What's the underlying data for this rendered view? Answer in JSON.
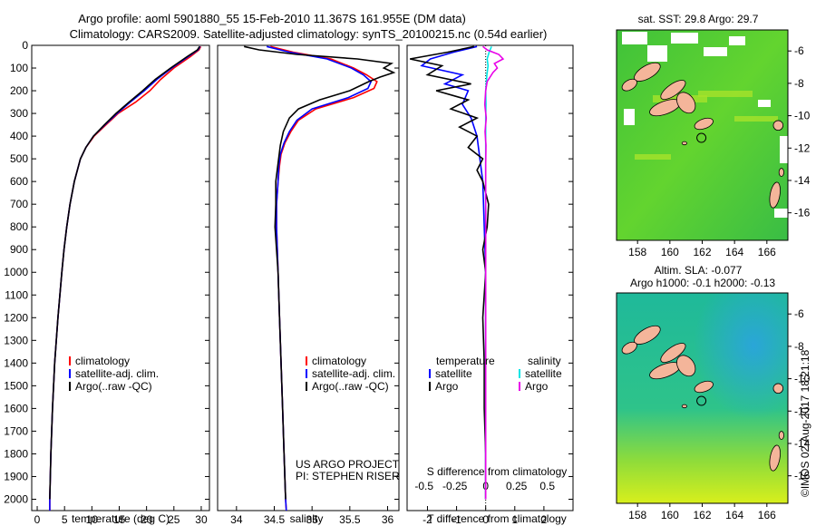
{
  "title": {
    "line1": "Argo profile: aoml 5901880_55 15-Feb-2010 11.367S 161.955E (DM data)",
    "line2": "Climatology: CARS2009. Satellite-adjusted climatology: synTS_20100215.nc (0.54d earlier)"
  },
  "colors": {
    "climatology": "#ff0000",
    "satellite": "#0000ff",
    "argo": "#000000",
    "sal_satellite": "#00e5e5",
    "sal_argo": "#e800e8"
  },
  "depth_axis": {
    "ticks": [
      0,
      100,
      200,
      300,
      400,
      500,
      600,
      700,
      800,
      900,
      1000,
      1100,
      1200,
      1300,
      1400,
      1500,
      1600,
      1700,
      1800,
      1900,
      2000
    ],
    "range": [
      0,
      2050
    ]
  },
  "chart_data": [
    {
      "type": "line",
      "xlabel": "temperature (deg C)",
      "xlim": [
        -1,
        31.5
      ],
      "xticks": [
        0,
        5,
        10,
        15,
        20,
        25,
        30
      ],
      "legend": {
        "labels": [
          "climatology",
          "satellite-adj. clim.",
          "Argo(..raw -QC)"
        ],
        "position": "lower-middle"
      },
      "series": [
        {
          "name": "climatology",
          "depth": [
            5,
            20,
            50,
            100,
            150,
            200,
            250,
            300,
            350,
            400,
            450,
            500,
            600,
            700,
            800,
            900,
            1000,
            1200,
            1400,
            1600,
            1800,
            2000,
            2050
          ],
          "values": [
            29.9,
            29.6,
            28.0,
            25.0,
            22.6,
            20.6,
            18.0,
            14.8,
            12.6,
            10.4,
            8.9,
            7.9,
            6.8,
            6.0,
            5.4,
            4.9,
            4.5,
            3.8,
            3.2,
            2.8,
            2.5,
            2.3,
            2.3
          ]
        },
        {
          "name": "satellite-adj. clim.",
          "depth": [
            5,
            20,
            50,
            100,
            150,
            200,
            250,
            300,
            350,
            400,
            450,
            500,
            600,
            700,
            800,
            900,
            1000,
            1200,
            1400,
            1600,
            1800,
            2000,
            2050
          ],
          "values": [
            29.8,
            29.4,
            27.6,
            24.6,
            21.9,
            19.6,
            17.0,
            14.6,
            12.4,
            10.3,
            8.9,
            7.9,
            6.8,
            6.0,
            5.4,
            4.9,
            4.5,
            3.8,
            3.2,
            2.8,
            2.5,
            2.3,
            2.3
          ]
        },
        {
          "name": "Argo(..raw -QC)",
          "depth": [
            5,
            20,
            50,
            100,
            150,
            200,
            250,
            300,
            350,
            400,
            450,
            500,
            600,
            700,
            800,
            900,
            1000,
            1200,
            1400,
            1600,
            1800,
            2000
          ],
          "values": [
            29.7,
            29.3,
            27.4,
            24.4,
            21.6,
            19.3,
            16.8,
            14.4,
            12.3,
            10.3,
            8.9,
            7.9,
            6.8,
            6.0,
            5.4,
            4.9,
            4.5,
            3.8,
            3.2,
            2.8,
            2.5,
            2.3
          ]
        }
      ]
    },
    {
      "type": "line",
      "xlabel": "salinity",
      "xlim": [
        33.75,
        36.15
      ],
      "xticks": [
        34,
        34.5,
        35,
        35.5,
        36
      ],
      "legend": {
        "labels": [
          "climatology",
          "satellite-adj. clim.",
          "Argo(..raw -QC)"
        ],
        "position": "lower-middle"
      },
      "annotation": [
        "US ARGO PROJECT",
        "PI: STEPHEN RISER"
      ],
      "series": [
        {
          "name": "climatology",
          "depth": [
            5,
            30,
            60,
            100,
            130,
            160,
            190,
            230,
            280,
            330,
            380,
            430,
            480,
            530,
            600,
            700,
            800,
            1000,
            1200,
            1400,
            1600,
            1800,
            2000,
            2050
          ],
          "values": [
            34.45,
            34.75,
            35.25,
            35.55,
            35.72,
            35.86,
            35.82,
            35.55,
            35.05,
            34.82,
            34.72,
            34.64,
            34.59,
            34.57,
            34.55,
            34.53,
            34.53,
            34.55,
            34.57,
            34.59,
            34.61,
            34.63,
            34.65,
            34.66
          ]
        },
        {
          "name": "satellite-adj. clim.",
          "depth": [
            5,
            30,
            60,
            100,
            130,
            160,
            190,
            230,
            280,
            330,
            380,
            430,
            480,
            530,
            600,
            700,
            800,
            1000,
            1200,
            1400,
            1600,
            1800,
            2000,
            2050
          ],
          "values": [
            34.4,
            34.7,
            35.2,
            35.52,
            35.68,
            35.78,
            35.74,
            35.48,
            35.0,
            34.8,
            34.7,
            34.63,
            34.58,
            34.56,
            34.55,
            34.53,
            34.53,
            34.55,
            34.57,
            34.59,
            34.61,
            34.63,
            34.65,
            34.66
          ]
        },
        {
          "name": "Argo(..raw -QC)",
          "depth": [
            5,
            20,
            40,
            60,
            80,
            100,
            120,
            140,
            160,
            200,
            240,
            280,
            320,
            380,
            440,
            520,
            600,
            700,
            800,
            900,
            1000,
            1200,
            1400,
            1600,
            1800,
            2000
          ],
          "values": [
            34.1,
            34.3,
            34.8,
            35.6,
            36.05,
            35.95,
            36.08,
            35.9,
            35.75,
            35.5,
            35.1,
            34.82,
            34.7,
            34.62,
            34.58,
            34.55,
            34.52,
            34.52,
            34.51,
            34.53,
            34.55,
            34.57,
            34.59,
            34.61,
            34.63,
            34.65
          ]
        }
      ]
    },
    {
      "type": "line",
      "xlabel": "T difference from climatology",
      "xlabel_top": "S difference from climatology",
      "xlim": [
        -2.7,
        3.0
      ],
      "xticks": [
        -2,
        -1,
        0,
        1,
        2
      ],
      "xticks_top": [
        -0.5,
        -0.25,
        0,
        0.25,
        0.5
      ],
      "legend": {
        "temperature_heading": "temperature",
        "salinity_heading": "salinity",
        "labels": [
          "satellite",
          "Argo",
          "satellite",
          "Argo"
        ]
      },
      "series": [
        {
          "name": "temperature satellite",
          "depth": [
            5,
            30,
            60,
            90,
            130,
            170,
            200,
            260,
            320,
            400,
            500,
            600,
            800,
            1000,
            1400,
            2000
          ],
          "values": [
            -0.3,
            -1.1,
            -1.9,
            -2.2,
            -0.8,
            -1.4,
            -0.6,
            -0.8,
            -0.5,
            -0.3,
            -0.2,
            -0.1,
            -0.05,
            0,
            0,
            0
          ]
        },
        {
          "name": "temperature Argo",
          "depth": [
            5,
            30,
            60,
            90,
            130,
            170,
            200,
            240,
            280,
            320,
            360,
            400,
            450,
            500,
            550,
            600,
            700,
            800,
            900,
            1000,
            1200,
            1400,
            1600,
            1800,
            2000
          ],
          "values": [
            -0.4,
            -1.3,
            -2.6,
            -1.5,
            -2.0,
            -0.5,
            -1.7,
            -0.6,
            -1.2,
            -0.3,
            -0.9,
            -0.3,
            -0.6,
            -0.1,
            -0.3,
            -0.1,
            0.1,
            0.05,
            -0.1,
            0.0,
            -0.1,
            -0.05,
            -0.05,
            0,
            0
          ]
        },
        {
          "name": "salinity satellite",
          "depth": [
            5,
            30,
            60,
            90,
            130,
            170,
            200,
            260,
            320,
            400,
            500,
            600,
            800,
            1000,
            1400,
            2000
          ],
          "values": [
            0.2,
            0.12,
            0.05,
            0.08,
            0.04,
            0.02,
            0.0,
            0.01,
            0.0,
            0.0,
            0.0,
            0.0,
            0.0,
            0.0,
            0.0,
            0.0
          ]
        },
        {
          "name": "salinity Argo",
          "depth": [
            5,
            20,
            40,
            60,
            80,
            100,
            120,
            140,
            160,
            200,
            260,
            320,
            380,
            440,
            520,
            600,
            800,
            1000,
            1400,
            2000
          ],
          "values": [
            -0.1,
            0.05,
            0.45,
            0.6,
            0.3,
            0.4,
            0.25,
            0.15,
            0.05,
            0.0,
            -0.03,
            0.02,
            -0.02,
            0.01,
            0.0,
            0.0,
            0.0,
            0.0,
            0.0,
            0.0
          ]
        }
      ]
    }
  ],
  "maps": [
    {
      "title": "sat. SST: 29.8  Argo: 29.7",
      "xticks": [
        158,
        160,
        162,
        164,
        166
      ],
      "yticks": [
        -6,
        -8,
        -10,
        -12,
        -14,
        -16
      ],
      "lon": [
        156.7,
        167.3
      ],
      "lat": [
        -4.7,
        -17.7
      ],
      "marker": [
        161.95,
        -11.37
      ]
    },
    {
      "title_line1": "Altim. SLA: -0.077",
      "title_line2": "Argo h1000: -0.1  h2000: -0.13",
      "xticks": [
        158,
        160,
        162,
        164,
        166
      ],
      "yticks": [
        -6,
        -8,
        -10,
        -12,
        -14,
        -16
      ],
      "lon": [
        156.7,
        167.3
      ],
      "lat": [
        -4.7,
        -17.7
      ],
      "marker": [
        161.95,
        -11.37
      ]
    }
  ],
  "footer": "©IMOS 02-Aug-2017 18:21:18"
}
